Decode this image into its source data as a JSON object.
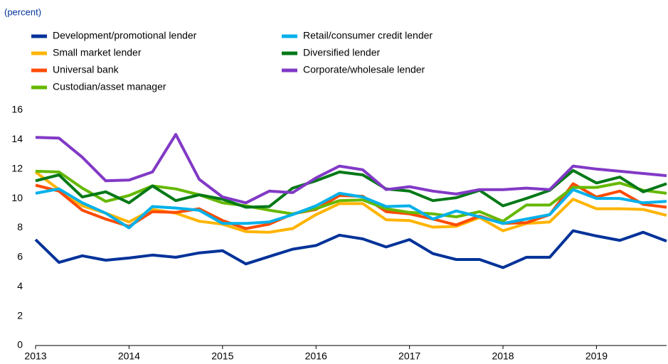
{
  "chart_data": {
    "type": "line",
    "ylabel": "(percent)",
    "x": [
      2013,
      2013.25,
      2013.5,
      2013.75,
      2014,
      2014.25,
      2014.5,
      2014.75,
      2015,
      2015.25,
      2015.5,
      2015.75,
      2016,
      2016.25,
      2016.5,
      2016.75,
      2017,
      2017.25,
      2017.5,
      2017.75,
      2018,
      2018.25,
      2018.5,
      2018.75,
      2019,
      2019.25,
      2019.5,
      2019.75
    ],
    "xlim": [
      2013,
      2019.75
    ],
    "xticks": [
      2013,
      2014,
      2015,
      2016,
      2017,
      2018,
      2019
    ],
    "ylim": [
      0,
      16
    ],
    "yticks": [
      0,
      2,
      4,
      6,
      8,
      10,
      12,
      14,
      16
    ],
    "grid": false,
    "series": [
      {
        "name": "Development/promotional lender",
        "color": "#003299",
        "values": [
          7.2,
          5.65,
          6.1,
          5.8,
          5.95,
          6.15,
          6.0,
          6.3,
          6.45,
          5.55,
          6.05,
          6.55,
          6.8,
          7.5,
          7.25,
          6.7,
          7.2,
          6.25,
          5.85,
          5.85,
          5.3,
          6.0,
          6.0,
          7.8,
          7.45,
          7.15,
          7.7,
          7.1
        ]
      },
      {
        "name": "Small market lender",
        "color": "#ffb400",
        "values": [
          11.8,
          10.6,
          9.5,
          9.0,
          8.4,
          9.25,
          9.0,
          8.45,
          8.25,
          7.75,
          7.7,
          7.95,
          8.9,
          9.65,
          9.65,
          8.55,
          8.5,
          8.05,
          8.1,
          8.7,
          7.8,
          8.3,
          8.4,
          9.95,
          9.3,
          9.3,
          9.25,
          8.85
        ]
      },
      {
        "name": "Universal bank",
        "color": "#ff4b00",
        "values": [
          10.9,
          10.5,
          9.2,
          8.6,
          8.1,
          9.1,
          9.05,
          9.3,
          8.5,
          7.95,
          8.25,
          8.95,
          9.25,
          10.2,
          10.15,
          9.1,
          8.95,
          8.6,
          8.2,
          8.8,
          8.3,
          8.35,
          8.9,
          11.0,
          10.1,
          10.5,
          9.6,
          9.4
        ]
      },
      {
        "name": "Custodian/asset manager",
        "color": "#65b800",
        "values": [
          11.85,
          11.8,
          10.7,
          9.8,
          10.2,
          10.85,
          10.65,
          10.25,
          9.7,
          9.5,
          9.2,
          8.95,
          9.3,
          9.85,
          9.9,
          9.3,
          9.05,
          8.95,
          8.75,
          9.1,
          8.45,
          9.55,
          9.55,
          10.75,
          10.75,
          11.05,
          10.55,
          10.35
        ]
      },
      {
        "name": "Retail/consumer credit lender",
        "color": "#00b1ea",
        "values": [
          10.35,
          10.65,
          9.7,
          9.0,
          8.0,
          9.45,
          9.35,
          9.2,
          8.3,
          8.3,
          8.4,
          8.9,
          9.5,
          10.35,
          10.1,
          9.45,
          9.5,
          8.6,
          9.15,
          8.75,
          8.3,
          8.6,
          8.9,
          10.6,
          10.0,
          10.0,
          9.7,
          9.8
        ]
      },
      {
        "name": "Diversified lender",
        "color": "#007816",
        "values": [
          11.2,
          11.6,
          10.1,
          10.45,
          9.7,
          10.85,
          9.85,
          10.25,
          9.95,
          9.4,
          9.45,
          10.7,
          11.2,
          11.8,
          11.6,
          10.65,
          10.5,
          9.85,
          10.05,
          10.55,
          9.5,
          10.0,
          10.55,
          11.9,
          11.05,
          11.45,
          10.45,
          11.0
        ]
      },
      {
        "name": "Corporate/wholesale lender",
        "color": "#8139c6",
        "values": [
          14.15,
          14.1,
          12.8,
          11.2,
          11.25,
          11.8,
          14.35,
          11.3,
          10.1,
          9.7,
          10.5,
          10.4,
          11.4,
          12.2,
          11.95,
          10.6,
          10.8,
          10.5,
          10.3,
          10.6,
          10.6,
          10.7,
          10.6,
          12.2,
          12.0,
          11.85,
          11.7,
          11.55
        ]
      }
    ]
  }
}
